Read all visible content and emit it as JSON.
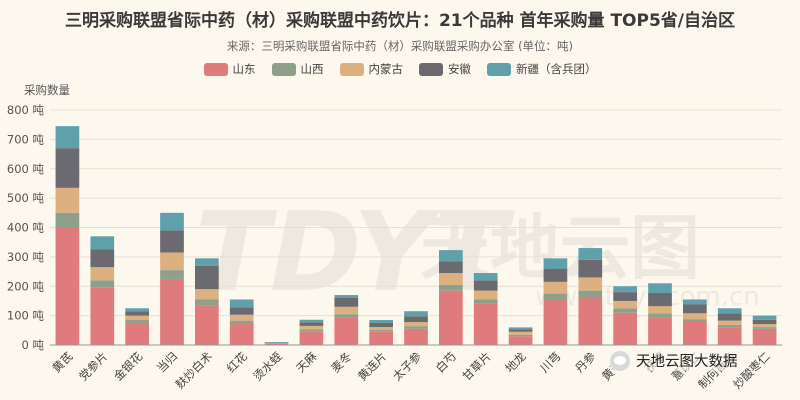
{
  "title": "三明采购联盟省际中药（材）采购联盟中药饮片：21个品种 首年采购量 TOP5省/自治区",
  "subtitle": "来源：三明采购联盟省际中药（材）采购联盟采购办公室    (单位：吨)",
  "watermark": {
    "center_text": "天地云图",
    "url_text": "www.tdyt.com.cn",
    "logo_text": "TDYT",
    "badge_text": "天地云图大数据"
  },
  "chart_data": {
    "type": "bar",
    "stacked": true,
    "title": "三明采购联盟省际中药（材）采购联盟中药饮片：21个品种 首年采购量 TOP5省/自治区",
    "ylabel": "采购数量",
    "xlabel": "",
    "ylim": [
      0,
      800
    ],
    "yticks": [
      0,
      100,
      200,
      300,
      400,
      500,
      600,
      700,
      800
    ],
    "ytick_suffix": " 吨",
    "grid": true,
    "legend_position": "top-center",
    "categories": [
      "黄芪",
      "党参片",
      "金银花",
      "当归",
      "麸炒白术",
      "红花",
      "烫水蛭",
      "天麻",
      "麦冬",
      "黄连片",
      "太子参",
      "白芍",
      "甘草片",
      "地龙",
      "川芎",
      "丹参",
      "黄芩片",
      "茯苓",
      "薏苡仁",
      "制何首乌",
      "炒酸枣仁"
    ],
    "series": [
      {
        "name": "山东",
        "color": "#e07b7d",
        "values": [
          400,
          195,
          75,
          225,
          135,
          75,
          4,
          45,
          95,
          45,
          55,
          185,
          140,
          30,
          155,
          160,
          110,
          95,
          80,
          60,
          55
        ]
      },
      {
        "name": "山西",
        "color": "#8fa08a",
        "values": [
          50,
          25,
          10,
          30,
          20,
          8,
          1,
          8,
          10,
          6,
          8,
          20,
          15,
          5,
          20,
          25,
          15,
          12,
          8,
          8,
          6
        ]
      },
      {
        "name": "内蒙古",
        "color": "#ddb07f",
        "values": [
          85,
          45,
          15,
          60,
          35,
          20,
          1,
          12,
          25,
          10,
          15,
          40,
          30,
          10,
          40,
          45,
          25,
          25,
          20,
          15,
          10
        ]
      },
      {
        "name": "安徽",
        "color": "#6b6a70",
        "values": [
          135,
          60,
          15,
          75,
          80,
          25,
          2,
          12,
          30,
          15,
          20,
          40,
          35,
          8,
          45,
          60,
          30,
          45,
          30,
          25,
          15
        ]
      },
      {
        "name": "新疆（含兵团）",
        "color": "#5fa0ab",
        "values": [
          75,
          45,
          10,
          60,
          25,
          27,
          2,
          9,
          10,
          9,
          17,
          38,
          25,
          7,
          35,
          40,
          20,
          33,
          17,
          17,
          14
        ]
      }
    ]
  }
}
